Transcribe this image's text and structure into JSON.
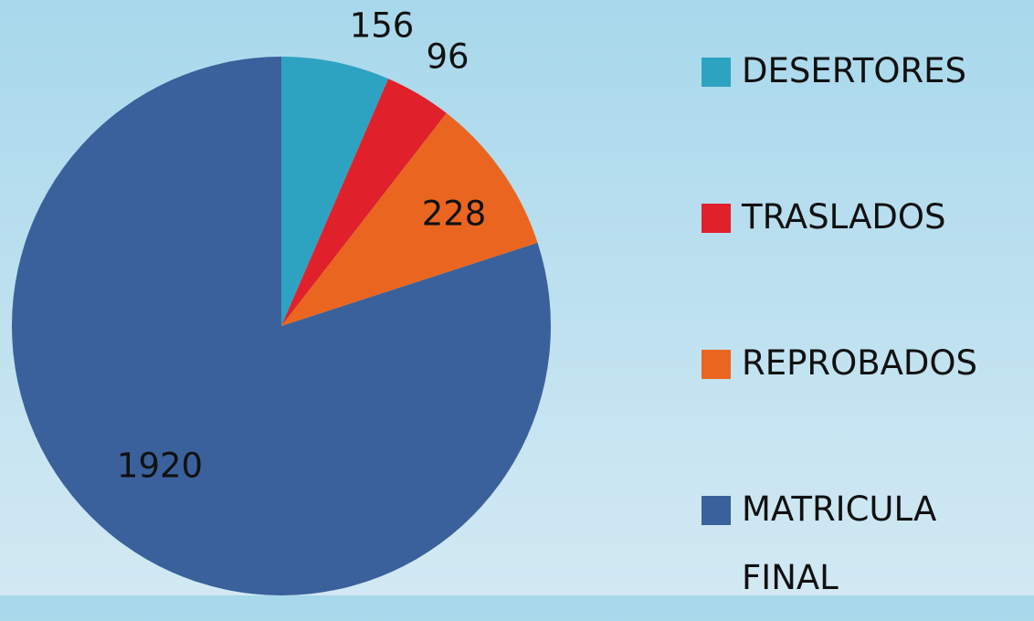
{
  "chart_data": {
    "type": "pie",
    "categories": [
      "DESERTORES",
      "TRASLADOS",
      "REPROBADOS",
      "MATRICULA FINAL"
    ],
    "values": [
      156,
      96,
      228,
      1920
    ],
    "colors": [
      "#2ea3c1",
      "#e0212b",
      "#ea6620",
      "#3a619b"
    ],
    "legend": "right"
  }
}
